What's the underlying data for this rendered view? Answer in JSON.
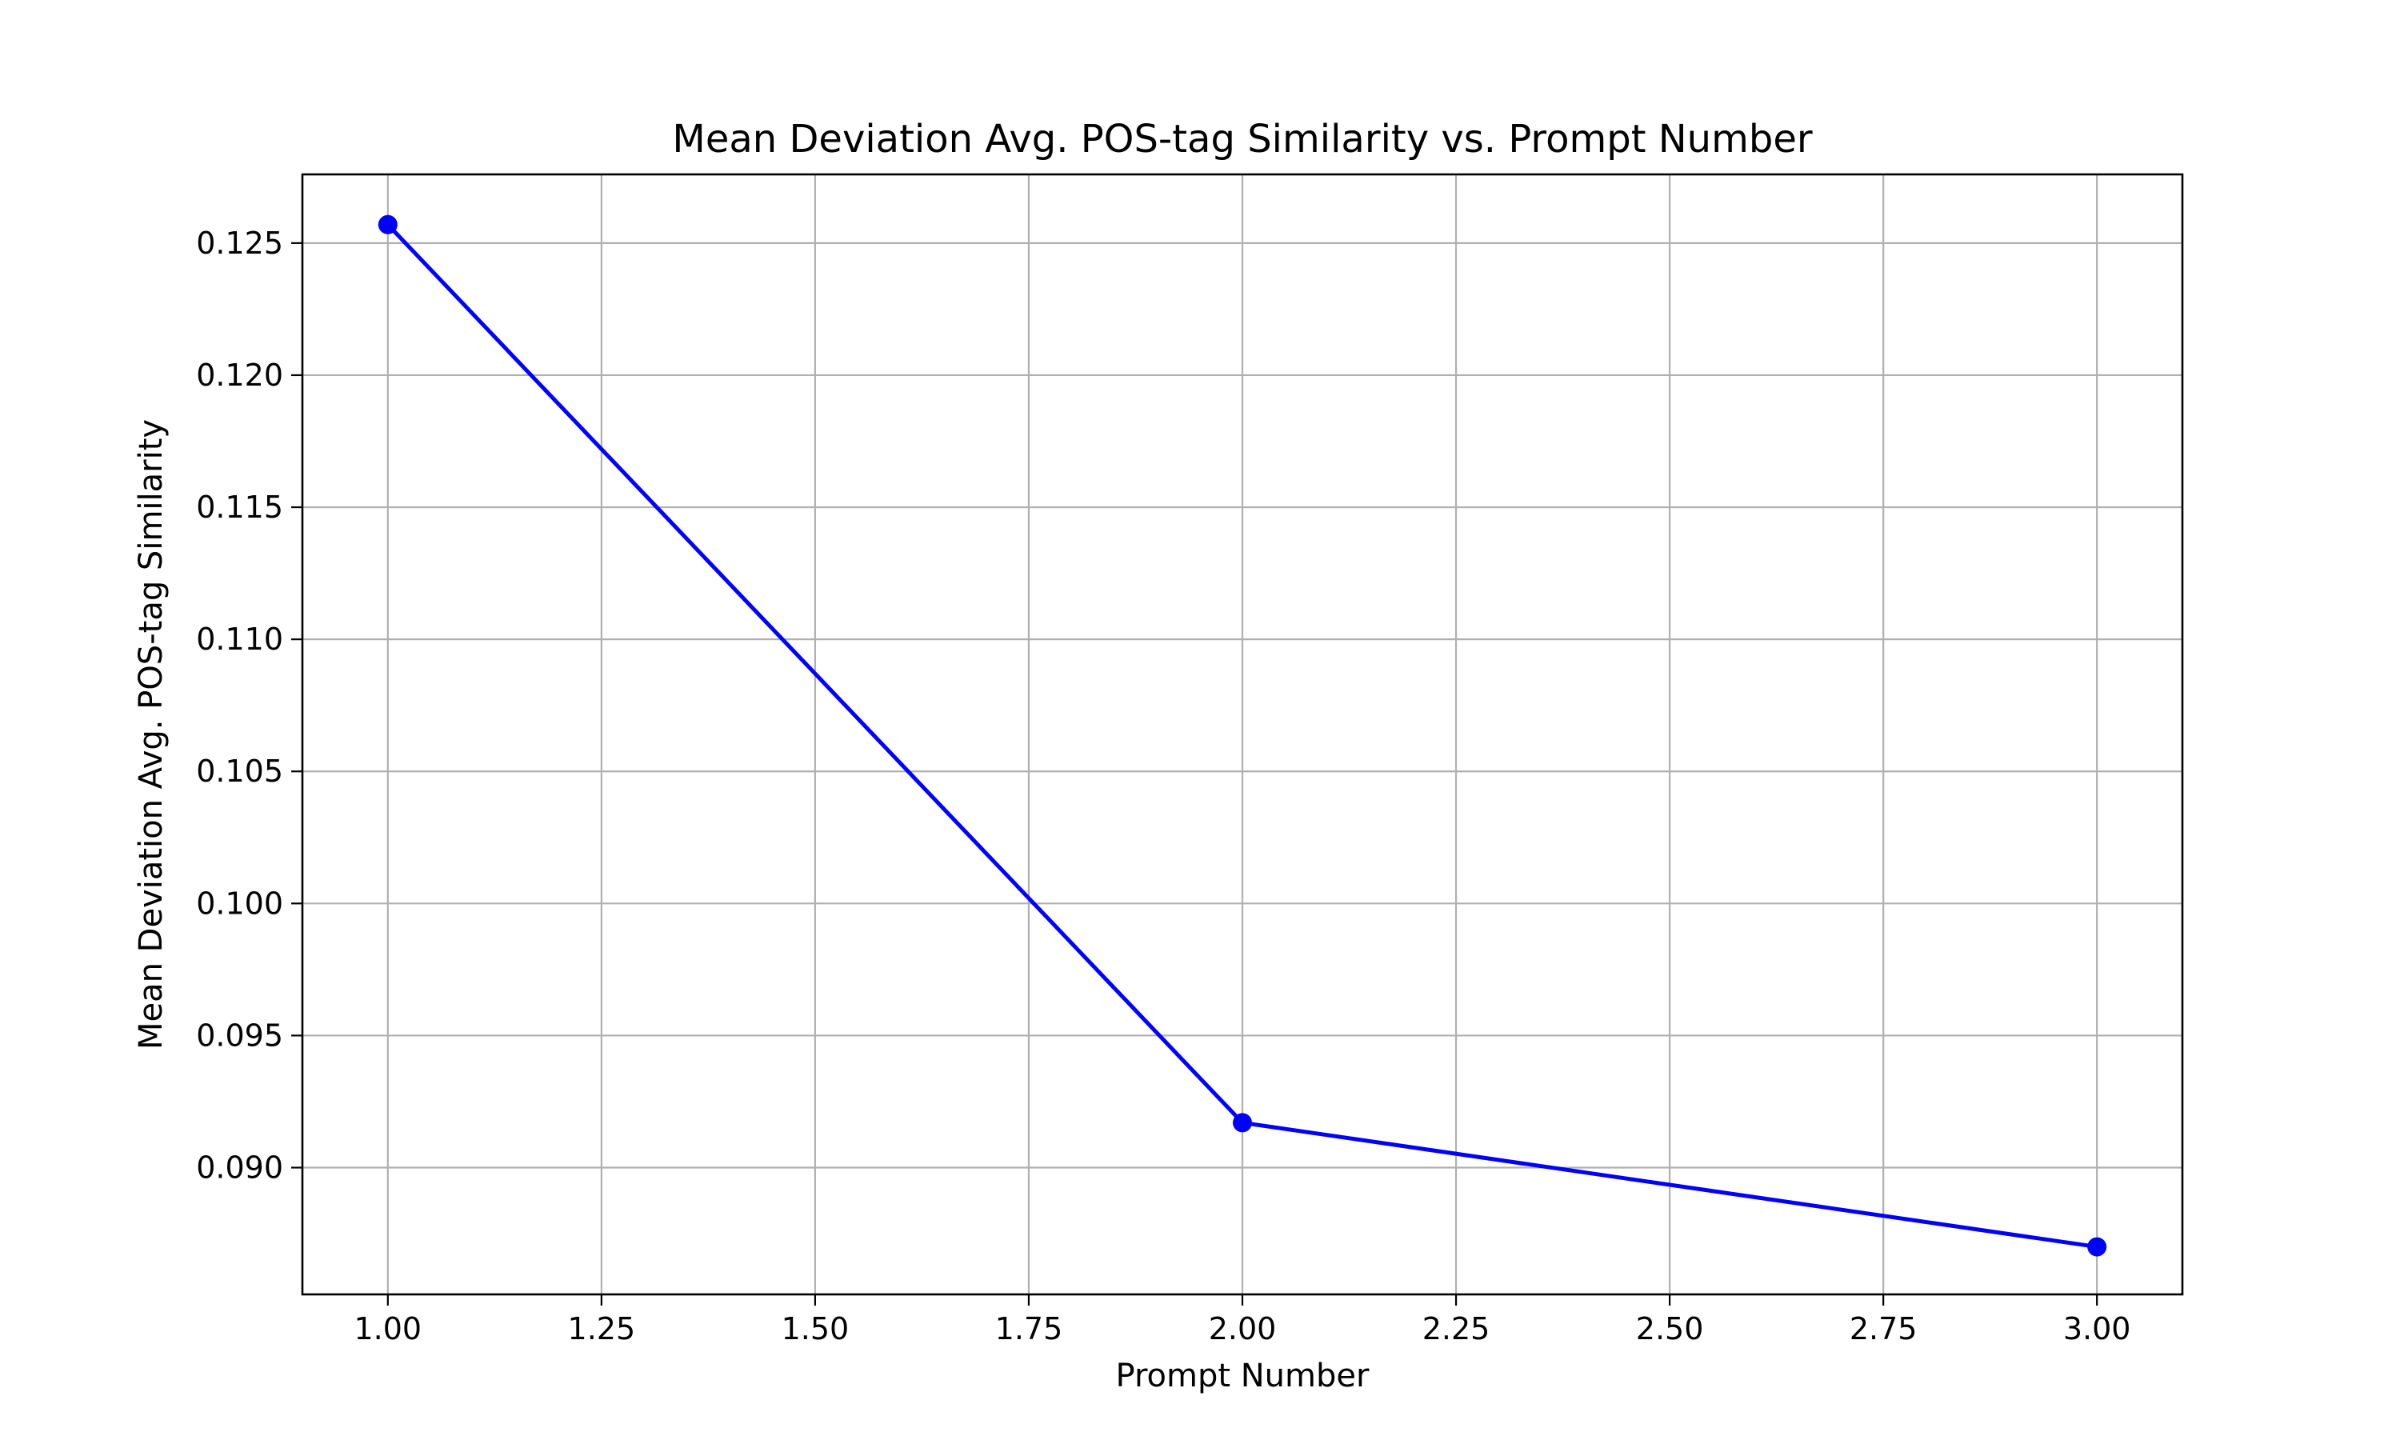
{
  "chart_data": {
    "type": "line",
    "title": "Mean Deviation Avg. POS-tag Similarity vs. Prompt Number",
    "xlabel": "Prompt Number",
    "ylabel": "Mean Deviation Avg. POS-tag Similarity",
    "xlim": [
      0.9,
      3.1
    ],
    "ylim": [
      0.0852,
      0.1276
    ],
    "x_ticks": [
      1.0,
      1.25,
      1.5,
      1.75,
      2.0,
      2.25,
      2.5,
      2.75,
      3.0
    ],
    "x_tick_labels": [
      "1.00",
      "1.25",
      "1.50",
      "1.75",
      "2.00",
      "2.25",
      "2.50",
      "2.75",
      "3.00"
    ],
    "y_ticks": [
      0.09,
      0.095,
      0.1,
      0.105,
      0.11,
      0.115,
      0.12,
      0.125
    ],
    "y_tick_labels": [
      "0.090",
      "0.095",
      "0.100",
      "0.105",
      "0.110",
      "0.115",
      "0.120",
      "0.125"
    ],
    "grid": true,
    "series": [
      {
        "color": "#0000ff",
        "marker": "circle",
        "points": [
          {
            "x": 1.0,
            "y": 0.1257
          },
          {
            "x": 2.0,
            "y": 0.0917
          },
          {
            "x": 3.0,
            "y": 0.087
          }
        ]
      }
    ]
  }
}
